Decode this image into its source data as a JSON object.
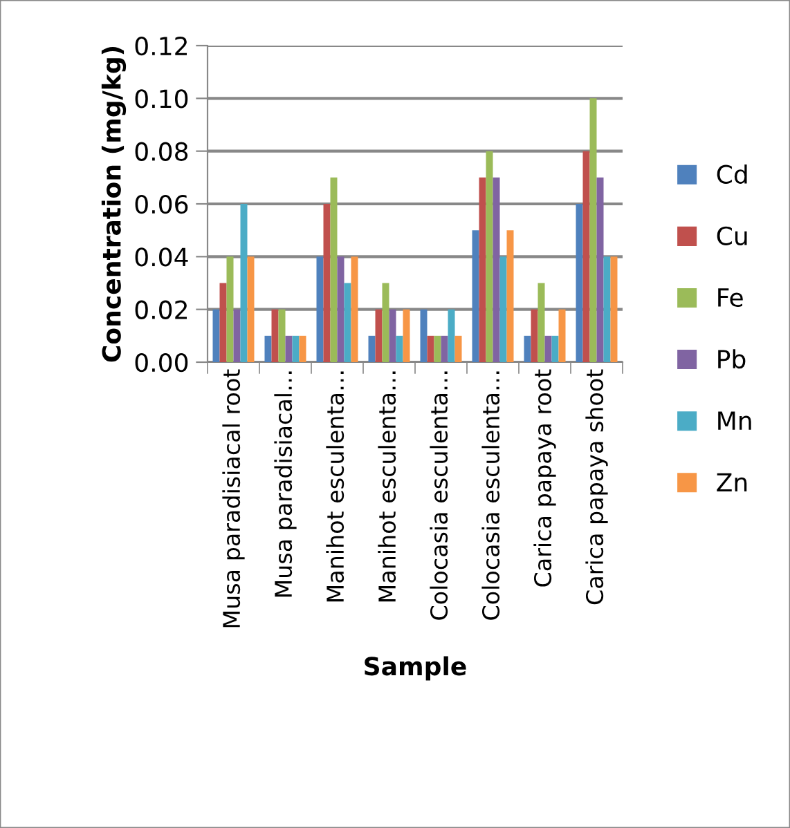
{
  "chart_data": {
    "type": "bar",
    "xlabel": "Sample",
    "ylabel": "Concentration (mg/kg)",
    "categories": [
      "Musa paradisiacal root",
      "Musa paradisiacal…",
      "Manihot esculenta…",
      "Manihot esculenta…",
      "Colocasia esculenta…",
      "Colocasia esculenta…",
      "Carica papaya root",
      "Carica papaya shoot"
    ],
    "series": [
      {
        "name": "Cd",
        "color": "#4f81bd",
        "values": [
          0.02,
          0.01,
          0.04,
          0.01,
          0.02,
          0.05,
          0.01,
          0.06
        ]
      },
      {
        "name": "Cu",
        "color": "#c0504d",
        "values": [
          0.03,
          0.02,
          0.06,
          0.02,
          0.01,
          0.07,
          0.02,
          0.08
        ]
      },
      {
        "name": "Fe",
        "color": "#9bbb59",
        "values": [
          0.04,
          0.02,
          0.07,
          0.03,
          0.01,
          0.08,
          0.03,
          0.1
        ]
      },
      {
        "name": "Pb",
        "color": "#8064a2",
        "values": [
          0.02,
          0.01,
          0.04,
          0.02,
          0.01,
          0.07,
          0.01,
          0.07
        ]
      },
      {
        "name": "Mn",
        "color": "#4bacc6",
        "values": [
          0.06,
          0.01,
          0.03,
          0.01,
          0.02,
          0.04,
          0.01,
          0.04
        ]
      },
      {
        "name": "Zn",
        "color": "#f79646",
        "values": [
          0.04,
          0.01,
          0.04,
          0.02,
          0.01,
          0.05,
          0.02,
          0.04
        ]
      }
    ],
    "ylim": [
      0,
      0.12
    ],
    "yticks": [
      {
        "value": 0,
        "label": "0.00"
      },
      {
        "value": 0.02,
        "label": "0.02"
      },
      {
        "value": 0.04,
        "label": "0.04"
      },
      {
        "value": 0.06,
        "label": "0.06"
      },
      {
        "value": 0.08,
        "label": "0.08"
      },
      {
        "value": 0.1,
        "label": "0.10"
      },
      {
        "value": 0.12,
        "label": "0.12"
      }
    ],
    "grid": "y",
    "legend": "right"
  }
}
